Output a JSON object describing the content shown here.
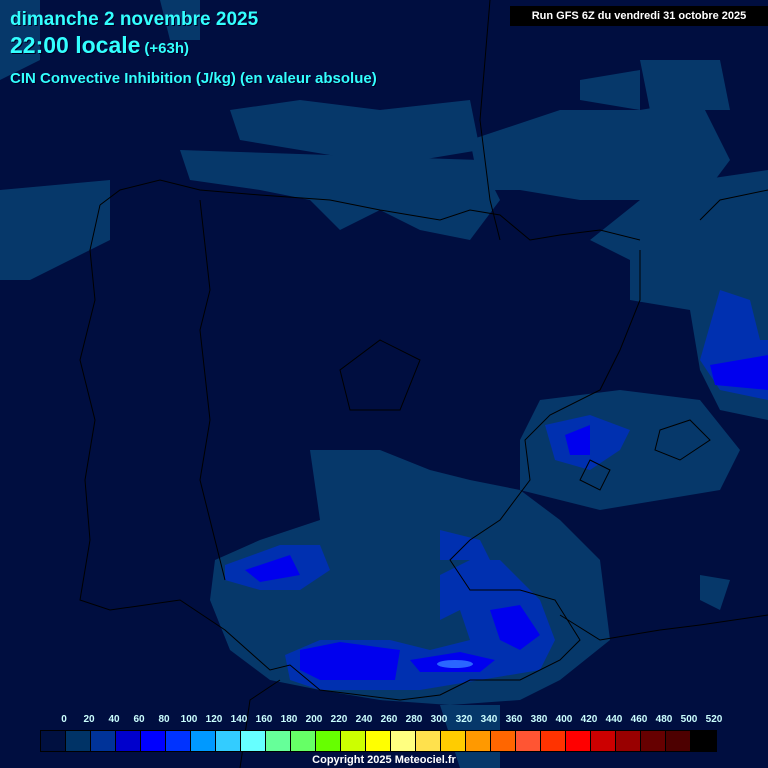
{
  "header": {
    "date": "dimanche 2 novembre 2025",
    "time": "22:00 locale",
    "lead": "(+63h)",
    "parameter": "CIN Convective Inhibition (J/kg) (en valeur absolue)",
    "run": "Run GFS 6Z du vendredi 31 octobre 2025"
  },
  "legend": {
    "labels": [
      "0",
      "20",
      "40",
      "60",
      "80",
      "100",
      "120",
      "140",
      "160",
      "180",
      "200",
      "220",
      "240",
      "260",
      "280",
      "300",
      "320",
      "340",
      "360",
      "380",
      "400",
      "420",
      "440",
      "460",
      "480",
      "500",
      "520"
    ],
    "colors": [
      "#001040",
      "#003366",
      "#003399",
      "#0000cc",
      "#0000ff",
      "#0033ff",
      "#0099ff",
      "#33ccff",
      "#66ffff",
      "#66ff99",
      "#66ff66",
      "#66ff00",
      "#ccff00",
      "#ffff00",
      "#ffff80",
      "#ffe14d",
      "#ffcc00",
      "#ff9900",
      "#ff6600",
      "#ff5533",
      "#ff3300",
      "#ff0000",
      "#cc0000",
      "#990000",
      "#660000",
      "#4d0000",
      "#000000"
    ]
  },
  "colors": {
    "background": "#000e40",
    "low": "#06386a",
    "mid": "#0030b0",
    "high": "#0000ee",
    "peak": "#2060ff"
  },
  "footer": {
    "copyright": "Copyright 2025 Meteociel.fr"
  }
}
